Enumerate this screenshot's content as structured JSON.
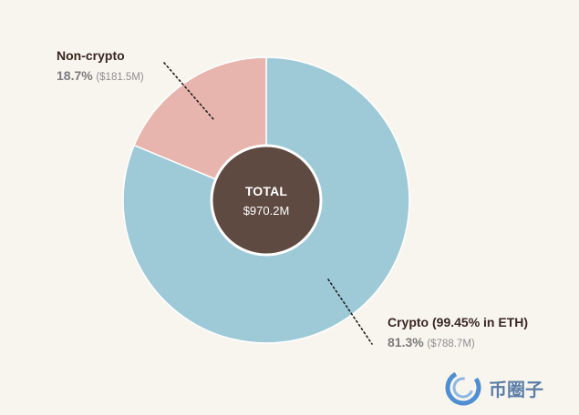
{
  "chart_data": {
    "type": "pie",
    "title": "",
    "center": {
      "title": "TOTAL",
      "value": "$970.2M"
    },
    "slices": [
      {
        "name": "Crypto (99.45% in ETH)",
        "value": 788.7,
        "percent": 81.3,
        "percent_label": "81.3%",
        "amount_label": "($788.7M)",
        "color": "#9ecad8"
      },
      {
        "name": "Non-crypto",
        "value": 181.5,
        "percent": 18.7,
        "percent_label": "18.7%",
        "amount_label": "($181.5M)",
        "color": "#e7b5ad"
      }
    ],
    "hole_color": "#5e4a40",
    "background": "#f8f5ef"
  },
  "watermark": {
    "text": "币圈子",
    "icon": "logo-icon"
  }
}
